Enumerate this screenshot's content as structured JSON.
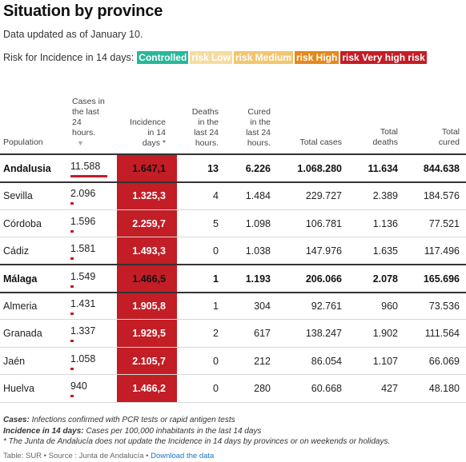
{
  "title": "Situation by province",
  "subtitle": "Data updated as of January 10.",
  "legend": {
    "label": "Risk for Incidence in 14 days:",
    "items": [
      {
        "label": "Controlled",
        "color": "#27b79a"
      },
      {
        "label": "risk Low",
        "color": "#f6dca0"
      },
      {
        "label": "risk Medium",
        "color": "#f2c66e"
      },
      {
        "label": "risk High",
        "color": "#e4891c"
      },
      {
        "label": "risk Very high risk",
        "color": "#c31d26"
      }
    ]
  },
  "columns": {
    "population": "Population",
    "cases24": [
      "Cases in",
      "the last",
      "24",
      "hours."
    ],
    "incidence": [
      "Incidence",
      "in 14",
      "days *"
    ],
    "deaths24": [
      "Deaths",
      "in the",
      "last 24",
      "hours."
    ],
    "cured24": [
      "Cured",
      "in the",
      "last 24",
      "hours."
    ],
    "total_cases": "Total cases",
    "total_deaths": [
      "Total",
      "deaths"
    ],
    "total_cured": [
      "Total",
      "cured"
    ]
  },
  "rows": [
    {
      "name": "Andalusia",
      "cases24": "11.588",
      "cases24_value": 11588,
      "incidence": "1.647,1",
      "deaths24": "13",
      "cured24": "6.226",
      "total_cases": "1.068.280",
      "total_deaths": "11.634",
      "total_cured": "844.638",
      "bold": true
    },
    {
      "name": "Sevilla",
      "cases24": "2.096",
      "cases24_value": 2096,
      "incidence": "1.325,3",
      "deaths24": "4",
      "cured24": "1.484",
      "total_cases": "229.727",
      "total_deaths": "2.389",
      "total_cured": "184.576",
      "bold": false
    },
    {
      "name": "Córdoba",
      "cases24": "1.596",
      "cases24_value": 1596,
      "incidence": "2.259,7",
      "deaths24": "5",
      "cured24": "1.098",
      "total_cases": "106.781",
      "total_deaths": "1.136",
      "total_cured": "77.521",
      "bold": false
    },
    {
      "name": "Cádiz",
      "cases24": "1.581",
      "cases24_value": 1581,
      "incidence": "1.493,3",
      "deaths24": "0",
      "cured24": "1.038",
      "total_cases": "147.976",
      "total_deaths": "1.635",
      "total_cured": "117.496",
      "bold": false
    },
    {
      "name": "Málaga",
      "cases24": "1.549",
      "cases24_value": 1549,
      "incidence": "1.466,5",
      "deaths24": "1",
      "cured24": "1.193",
      "total_cases": "206.066",
      "total_deaths": "2.078",
      "total_cured": "165.696",
      "bold": true
    },
    {
      "name": "Almeria",
      "cases24": "1.431",
      "cases24_value": 1431,
      "incidence": "1.905,8",
      "deaths24": "1",
      "cured24": "304",
      "total_cases": "92.761",
      "total_deaths": "960",
      "total_cured": "73.536",
      "bold": false
    },
    {
      "name": "Granada",
      "cases24": "1.337",
      "cases24_value": 1337,
      "incidence": "1.929,5",
      "deaths24": "2",
      "cured24": "617",
      "total_cases": "138.247",
      "total_deaths": "1.902",
      "total_cured": "111.564",
      "bold": false
    },
    {
      "name": "Jaén",
      "cases24": "1.058",
      "cases24_value": 1058,
      "incidence": "2.105,7",
      "deaths24": "0",
      "cured24": "212",
      "total_cases": "86.054",
      "total_deaths": "1.107",
      "total_cured": "66.069",
      "bold": false
    },
    {
      "name": "Huelva",
      "cases24": "940",
      "cases24_value": 940,
      "incidence": "1.466,2",
      "deaths24": "0",
      "cured24": "280",
      "total_cases": "60.668",
      "total_deaths": "427",
      "total_cured": "48.180",
      "bold": false
    }
  ],
  "footnotes": {
    "cases_term": "Cases:",
    "cases_text": " Infections confirmed with PCR tests or rapid antigen tests",
    "incidence_term": "Incidence in 14 days:",
    "incidence_text": " Cases per 100,000 inhabitants in the last 14 days",
    "note": "* The Junta de Andalucía does not update the Incidence in 14 days by provinces or on weekends or holidays."
  },
  "credit": {
    "text": "Table: SUR • Source : Junta de Andalucía •",
    "link": "Download the data"
  }
}
